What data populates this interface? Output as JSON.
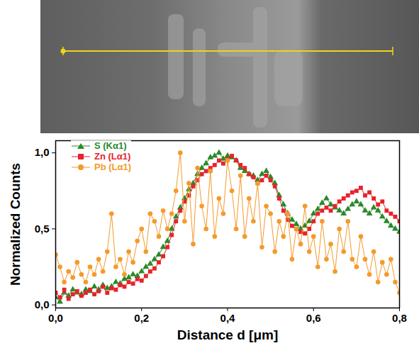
{
  "chart_data": {
    "type": "line",
    "x_label": "Distance d [μm]",
    "y_label": "Normalized Counts",
    "xlim": [
      0,
      0.8
    ],
    "ylim": [
      -0.02,
      1.08
    ],
    "xticks": [
      {
        "value": 0,
        "label": "0,0"
      },
      {
        "value": 0.2,
        "label": "0,2"
      },
      {
        "value": 0.4,
        "label": "0,4"
      },
      {
        "value": 0.6,
        "label": "0,6"
      },
      {
        "value": 0.8,
        "label": "0,8"
      }
    ],
    "yticks": [
      {
        "value": 0,
        "label": "0,0"
      },
      {
        "value": 0.5,
        "label": "0,5"
      },
      {
        "value": 1,
        "label": "1,0"
      }
    ],
    "legend": "upper left",
    "grid": false,
    "x": [
      0,
      0.01,
      0.02,
      0.03,
      0.04,
      0.05,
      0.06,
      0.07,
      0.08,
      0.09,
      0.1,
      0.11,
      0.12,
      0.13,
      0.14,
      0.15,
      0.16,
      0.17,
      0.18,
      0.19,
      0.2,
      0.21,
      0.22,
      0.23,
      0.24,
      0.25,
      0.26,
      0.27,
      0.28,
      0.29,
      0.3,
      0.31,
      0.32,
      0.33,
      0.34,
      0.35,
      0.36,
      0.37,
      0.38,
      0.39,
      0.4,
      0.41,
      0.42,
      0.43,
      0.44,
      0.45,
      0.46,
      0.47,
      0.48,
      0.49,
      0.5,
      0.51,
      0.52,
      0.53,
      0.54,
      0.55,
      0.56,
      0.57,
      0.58,
      0.59,
      0.6,
      0.61,
      0.62,
      0.63,
      0.64,
      0.65,
      0.66,
      0.67,
      0.68,
      0.69,
      0.7,
      0.71,
      0.72,
      0.73,
      0.74,
      0.75,
      0.76,
      0.77,
      0.78,
      0.79,
      0.8
    ],
    "series": [
      {
        "name": "S (Kα1)",
        "color": "#2a8a2a",
        "marker": "triangle",
        "line_style": "solid",
        "values": [
          0.05,
          0.02,
          0.08,
          0.06,
          0.1,
          0.08,
          0.07,
          0.1,
          0.09,
          0.12,
          0.1,
          0.13,
          0.11,
          0.12,
          0.15,
          0.14,
          0.17,
          0.18,
          0.2,
          0.19,
          0.22,
          0.25,
          0.27,
          0.3,
          0.33,
          0.38,
          0.42,
          0.5,
          0.58,
          0.64,
          0.7,
          0.76,
          0.8,
          0.86,
          0.9,
          0.93,
          0.97,
          0.98,
          1.0,
          0.96,
          0.98,
          0.97,
          0.95,
          0.9,
          0.88,
          0.86,
          0.85,
          0.82,
          0.86,
          0.88,
          0.84,
          0.8,
          0.72,
          0.66,
          0.6,
          0.56,
          0.53,
          0.5,
          0.52,
          0.55,
          0.6,
          0.63,
          0.67,
          0.7,
          0.66,
          0.64,
          0.62,
          0.6,
          0.63,
          0.66,
          0.68,
          0.66,
          0.62,
          0.6,
          0.64,
          0.62,
          0.58,
          0.55,
          0.52,
          0.5,
          0.48
        ]
      },
      {
        "name": "Zn (Lα1)",
        "color": "#e8222a",
        "marker": "square",
        "line_style": "solid",
        "values": [
          0.08,
          0.05,
          0.1,
          0.04,
          0.07,
          0.09,
          0.06,
          0.08,
          0.1,
          0.07,
          0.09,
          0.12,
          0.08,
          0.11,
          0.1,
          0.13,
          0.12,
          0.15,
          0.14,
          0.17,
          0.16,
          0.19,
          0.22,
          0.24,
          0.28,
          0.32,
          0.38,
          0.46,
          0.55,
          0.62,
          0.68,
          0.72,
          0.78,
          0.82,
          0.86,
          0.88,
          0.9,
          0.92,
          0.95,
          0.93,
          0.96,
          0.98,
          0.95,
          0.92,
          0.9,
          0.86,
          0.84,
          0.8,
          0.82,
          0.85,
          0.82,
          0.78,
          0.7,
          0.62,
          0.56,
          0.52,
          0.5,
          0.48,
          0.47,
          0.5,
          0.55,
          0.6,
          0.62,
          0.64,
          0.62,
          0.65,
          0.68,
          0.7,
          0.72,
          0.74,
          0.75,
          0.77,
          0.72,
          0.74,
          0.7,
          0.66,
          0.68,
          0.62,
          0.6,
          0.58,
          0.55
        ]
      },
      {
        "name": "Pb (Lα1)",
        "color": "#f59a2a",
        "marker": "circle",
        "line_style": "solid",
        "values": [
          0.33,
          0.25,
          0.15,
          0.22,
          0.18,
          0.28,
          0.2,
          0.15,
          0.25,
          0.2,
          0.3,
          0.22,
          0.35,
          0.6,
          0.25,
          0.3,
          0.2,
          0.35,
          0.28,
          0.42,
          0.5,
          0.35,
          0.6,
          0.55,
          0.45,
          0.62,
          0.5,
          0.6,
          0.75,
          1.0,
          0.55,
          0.8,
          0.4,
          0.9,
          0.65,
          0.5,
          0.88,
          0.45,
          0.7,
          0.6,
          0.95,
          0.75,
          0.5,
          0.85,
          0.45,
          0.7,
          0.55,
          0.8,
          0.38,
          0.65,
          0.6,
          0.35,
          0.55,
          0.45,
          0.6,
          0.3,
          0.5,
          0.4,
          0.65,
          0.35,
          0.45,
          0.25,
          0.55,
          0.3,
          0.4,
          0.22,
          0.5,
          0.35,
          0.55,
          0.3,
          0.25,
          0.45,
          0.3,
          0.2,
          0.35,
          0.15,
          0.28,
          0.2,
          0.3,
          0.15,
          0.08
        ]
      }
    ]
  }
}
